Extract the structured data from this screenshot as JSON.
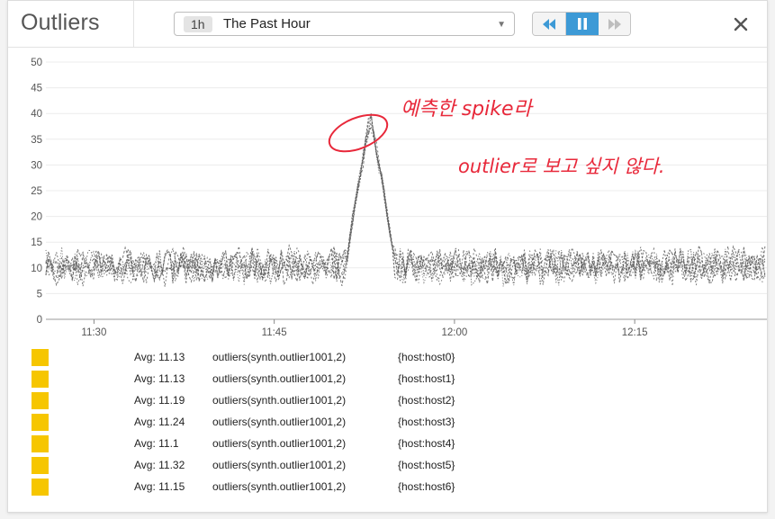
{
  "window": {
    "title": "Outliers",
    "close_icon": "close-icon"
  },
  "time_selector": {
    "badge": "1h",
    "label": "The Past Hour",
    "caret_icon": "caret-down-icon"
  },
  "playback": {
    "rewind_icon": "rewind-icon",
    "pause_icon": "pause-icon",
    "fast_forward_icon": "fast-forward-icon",
    "active": "pause",
    "active_color": "#3d9ad6"
  },
  "annotation": {
    "line1": "예측한 spike라",
    "line2": "outlier로 보고 싶지 않다.",
    "color": "#e8283a"
  },
  "chart_data": {
    "type": "line",
    "title": "",
    "xlabel": "",
    "ylabel": "",
    "ylim": [
      0,
      50
    ],
    "yticks": [
      0,
      5,
      10,
      15,
      20,
      25,
      30,
      35,
      40,
      45,
      50
    ],
    "x_range": [
      "11:26",
      "12:26"
    ],
    "xticks": [
      "11:30",
      "11:45",
      "12:00",
      "12:15"
    ],
    "grid": "horizontal",
    "line_style": "dotted",
    "line_color": "#555555",
    "baseline_value": 10,
    "spike": {
      "start": "11:51",
      "peak": "11:53",
      "end": "11:55",
      "peak_value": 39
    },
    "series": [
      {
        "name": "{host:host0}",
        "avg": 11.13
      },
      {
        "name": "{host:host1}",
        "avg": 11.13
      },
      {
        "name": "{host:host2}",
        "avg": 11.19
      },
      {
        "name": "{host:host3}",
        "avg": 11.24
      },
      {
        "name": "{host:host4}",
        "avg": 11.1
      },
      {
        "name": "{host:host5}",
        "avg": 11.32
      },
      {
        "name": "{host:host6}",
        "avg": 11.15
      }
    ]
  },
  "legend": {
    "swatch_color": "#f6c600",
    "rows": [
      {
        "avg": "Avg: 11.13",
        "query": "outliers(synth.outlier1001,2)",
        "tag": "{host:host0}"
      },
      {
        "avg": "Avg: 11.13",
        "query": "outliers(synth.outlier1001,2)",
        "tag": "{host:host1}"
      },
      {
        "avg": "Avg: 11.19",
        "query": "outliers(synth.outlier1001,2)",
        "tag": "{host:host2}"
      },
      {
        "avg": "Avg: 11.24",
        "query": "outliers(synth.outlier1001,2)",
        "tag": "{host:host3}"
      },
      {
        "avg": "Avg: 11.1",
        "query": "outliers(synth.outlier1001,2)",
        "tag": "{host:host4}"
      },
      {
        "avg": "Avg: 11.32",
        "query": "outliers(synth.outlier1001,2)",
        "tag": "{host:host5}"
      },
      {
        "avg": "Avg: 11.15",
        "query": "outliers(synth.outlier1001,2)",
        "tag": "{host:host6}"
      }
    ]
  }
}
